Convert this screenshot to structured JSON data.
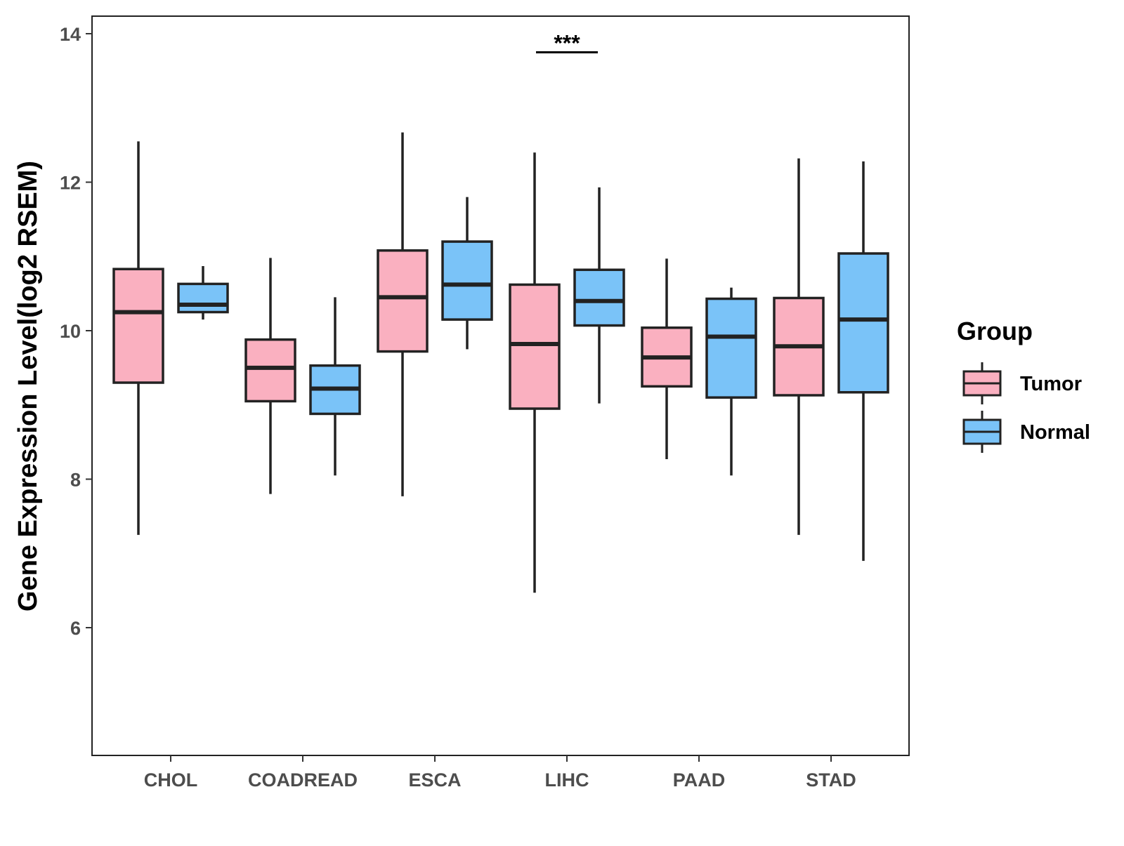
{
  "chart_data": {
    "type": "boxplot",
    "title": "",
    "xlabel": "",
    "ylabel": "Gene Expression Level(log2 RSEM)",
    "ylim": [
      4.3,
      14.3
    ],
    "yticks": [
      6,
      8,
      10,
      12,
      14
    ],
    "categories": [
      "CHOL",
      "COADREAD",
      "ESCA",
      "LIHC",
      "PAAD",
      "STAD"
    ],
    "series": [
      {
        "name": "Tumor",
        "color": "#FAB0C0",
        "boxes": [
          {
            "whisker_low": 7.25,
            "q1": 9.3,
            "median": 10.25,
            "q3": 10.83,
            "whisker_high": 12.55
          },
          {
            "whisker_low": 7.8,
            "q1": 9.05,
            "median": 9.5,
            "q3": 9.88,
            "whisker_high": 10.98
          },
          {
            "whisker_low": 7.77,
            "q1": 9.72,
            "median": 10.45,
            "q3": 11.08,
            "whisker_high": 12.67
          },
          {
            "whisker_low": 6.47,
            "q1": 8.95,
            "median": 9.82,
            "q3": 10.62,
            "whisker_high": 12.4
          },
          {
            "whisker_low": 8.27,
            "q1": 9.25,
            "median": 9.64,
            "q3": 10.04,
            "whisker_high": 10.97
          },
          {
            "whisker_low": 7.25,
            "q1": 9.13,
            "median": 9.79,
            "q3": 10.44,
            "whisker_high": 12.32
          }
        ]
      },
      {
        "name": "Normal",
        "color": "#7AC3F8",
        "boxes": [
          {
            "whisker_low": 10.15,
            "q1": 10.25,
            "median": 10.35,
            "q3": 10.63,
            "whisker_high": 10.87
          },
          {
            "whisker_low": 8.05,
            "q1": 8.88,
            "median": 9.22,
            "q3": 9.53,
            "whisker_high": 10.45
          },
          {
            "whisker_low": 9.75,
            "q1": 10.15,
            "median": 10.62,
            "q3": 11.2,
            "whisker_high": 11.8
          },
          {
            "whisker_low": 9.02,
            "q1": 10.07,
            "median": 10.4,
            "q3": 10.82,
            "whisker_high": 11.93
          },
          {
            "whisker_low": 8.05,
            "q1": 9.1,
            "median": 9.92,
            "q3": 10.43,
            "whisker_high": 10.58
          },
          {
            "whisker_low": 6.9,
            "q1": 9.17,
            "median": 10.15,
            "q3": 11.04,
            "whisker_high": 12.28
          }
        ]
      }
    ],
    "annotations": [
      {
        "category": "LIHC",
        "label": "***",
        "y": 13.75
      }
    ],
    "legend": {
      "title": "Group",
      "position": "right"
    }
  }
}
